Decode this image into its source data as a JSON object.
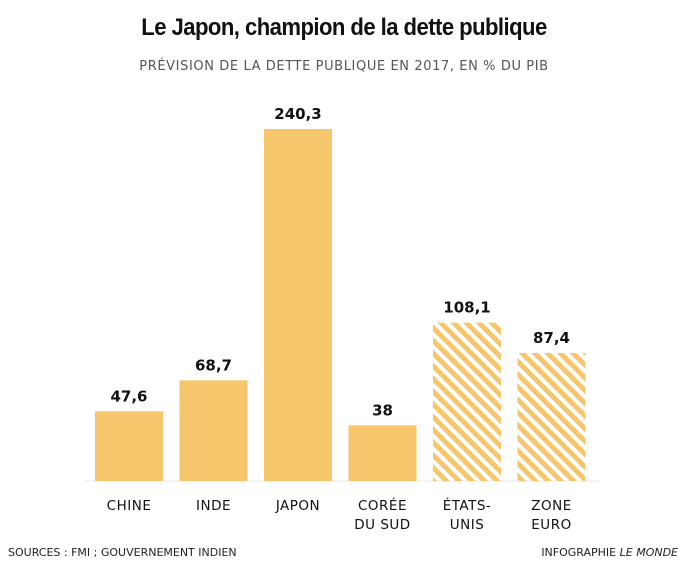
{
  "chart_data": {
    "type": "bar",
    "title": "Le Japon, champion de la dette publique",
    "subtitle": "PRÉVISION DE LA DETTE PUBLIQUE EN 2017,  EN % DU PIB",
    "categories": [
      [
        "CHINE"
      ],
      [
        "INDE"
      ],
      [
        "JAPON"
      ],
      [
        "CORÉE",
        "DU SUD"
      ],
      [
        "ÉTATS-",
        "UNIS"
      ],
      [
        "ZONE",
        "EURO"
      ]
    ],
    "values": [
      47.6,
      68.7,
      240.3,
      38,
      108.1,
      87.4
    ],
    "value_labels": [
      "47,6",
      "68,7",
      "240,3",
      "38",
      "108,1",
      "87,4"
    ],
    "hatched": [
      false,
      false,
      false,
      false,
      true,
      true
    ],
    "bar_color": "#F5C66B",
    "ylim": [
      0,
      240.3
    ],
    "grid": false,
    "legend": "none"
  },
  "footer": {
    "sources": "SOURCES : FMI ; GOUVERNEMENT INDIEN",
    "credit_prefix": "INFOGRAPHIE ",
    "credit_brand": "LE MONDE"
  }
}
